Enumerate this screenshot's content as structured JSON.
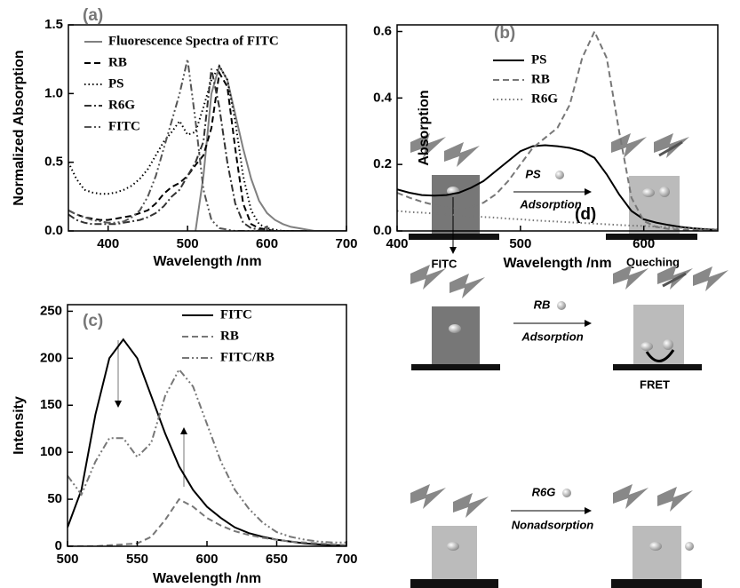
{
  "chart_data": [
    {
      "type": "line",
      "title": "(a)",
      "xlabel": "Wavelength /nm",
      "ylabel": "Normalized Absorption",
      "x": [
        350,
        360,
        370,
        380,
        390,
        400,
        410,
        420,
        430,
        440,
        450,
        460,
        470,
        480,
        490,
        500,
        510,
        520,
        530,
        540,
        550,
        560,
        570,
        580,
        590,
        600,
        610,
        620,
        630,
        640,
        650,
        660,
        670,
        680,
        690,
        700
      ],
      "series": [
        {
          "name": "Fluorescence Spectra of FITC",
          "color": "#808080",
          "dash": "solid",
          "values": [
            null,
            null,
            null,
            null,
            null,
            null,
            null,
            null,
            null,
            null,
            null,
            null,
            null,
            null,
            null,
            null,
            0.0,
            0.4,
            1.0,
            1.2,
            1.1,
            0.85,
            0.6,
            0.38,
            0.22,
            0.13,
            0.08,
            0.05,
            0.03,
            0.02,
            0.01,
            0.0,
            0.0,
            0.0,
            0.0,
            0.0
          ]
        },
        {
          "name": "RB",
          "color": "#000000",
          "dash": "dashed",
          "values": [
            0.15,
            0.12,
            0.1,
            0.09,
            0.08,
            0.08,
            0.09,
            0.1,
            0.11,
            0.13,
            0.15,
            0.2,
            0.27,
            0.32,
            0.35,
            0.4,
            0.48,
            0.55,
            0.75,
            1.15,
            1.05,
            0.6,
            0.2,
            0.05,
            0.02,
            0.01,
            0.0,
            0.0,
            0.0,
            0.0,
            0.0,
            null,
            null,
            null,
            null,
            null
          ]
        },
        {
          "name": "PS",
          "color": "#000000",
          "dash": "dotted",
          "values": [
            0.5,
            0.38,
            0.3,
            0.28,
            0.27,
            0.27,
            0.28,
            0.3,
            0.33,
            0.38,
            0.45,
            0.55,
            0.65,
            0.72,
            0.8,
            0.7,
            0.72,
            0.9,
            1.1,
            1.2,
            1.1,
            0.8,
            0.4,
            0.15,
            0.05,
            0.02,
            0.01,
            0.0,
            0.0,
            0.0,
            0.0,
            null,
            null,
            null,
            null,
            null
          ]
        },
        {
          "name": "R6G",
          "color": "#333333",
          "dash": "dashdot",
          "values": [
            0.12,
            0.08,
            0.06,
            0.05,
            0.05,
            0.05,
            0.05,
            0.06,
            0.07,
            0.08,
            0.1,
            0.13,
            0.18,
            0.25,
            0.3,
            0.4,
            0.5,
            0.65,
            1.18,
            0.9,
            0.5,
            0.2,
            0.06,
            0.02,
            0.01,
            0.0,
            0.0,
            0.0,
            0.0,
            0.0,
            0.0,
            null,
            null,
            null,
            null,
            null
          ]
        },
        {
          "name": "FITC",
          "color": "#555555",
          "dash": "dashdotdot",
          "values": [
            0.15,
            0.12,
            0.1,
            0.08,
            0.07,
            0.06,
            0.06,
            0.07,
            0.1,
            0.15,
            0.25,
            0.4,
            0.6,
            0.8,
            1.0,
            1.25,
            0.8,
            0.3,
            0.08,
            0.02,
            0.01,
            0.0,
            0.0,
            0.0,
            0.0,
            0.0,
            0.0,
            0.0,
            0.0,
            0.0,
            0.0,
            null,
            null,
            null,
            null,
            null
          ]
        }
      ],
      "xlim": [
        350,
        700
      ],
      "ylim": [
        0,
        1.5
      ],
      "xticks": [
        400,
        500,
        600,
        700
      ],
      "yticks": [
        {
          "value": 0,
          "label": "0.0"
        },
        0.5,
        {
          "value": 1,
          "label": "1.0"
        },
        1.5
      ],
      "grid": false,
      "legend": "upper left"
    },
    {
      "type": "line",
      "title": "(b)",
      "xlabel": "Wavelength /nm",
      "ylabel": "Absorption",
      "x": [
        400,
        410,
        420,
        430,
        440,
        450,
        460,
        470,
        480,
        490,
        500,
        510,
        520,
        530,
        540,
        550,
        560,
        570,
        580,
        590,
        600,
        610,
        620,
        630,
        640,
        650,
        660
      ],
      "series": [
        {
          "name": "PS",
          "color": "#000000",
          "dash": "solid",
          "values": [
            0.125,
            0.115,
            0.108,
            0.106,
            0.108,
            0.115,
            0.13,
            0.15,
            0.18,
            0.21,
            0.24,
            0.255,
            0.258,
            0.255,
            0.25,
            0.24,
            0.22,
            0.17,
            0.11,
            0.06,
            0.035,
            0.025,
            0.018,
            0.012,
            0.008,
            0.005,
            0.003
          ]
        },
        {
          "name": "RB",
          "color": "#777777",
          "dash": "dashed",
          "values": [
            0.115,
            0.1,
            0.088,
            0.078,
            0.07,
            0.068,
            0.072,
            0.085,
            0.11,
            0.15,
            0.2,
            0.25,
            0.28,
            0.31,
            0.38,
            0.52,
            0.6,
            0.52,
            0.3,
            0.1,
            0.03,
            0.012,
            0.006,
            0.004,
            0.003,
            0.002,
            0.002
          ]
        },
        {
          "name": "R6G",
          "color": "#777777",
          "dash": "dotted",
          "values": [
            0.06,
            0.057,
            0.055,
            0.052,
            0.05,
            0.047,
            0.045,
            0.042,
            0.04,
            0.037,
            0.035,
            0.032,
            0.03,
            0.028,
            0.026,
            0.024,
            0.022,
            0.02,
            0.018,
            0.016,
            0.015,
            0.013,
            0.011,
            0.009,
            0.008,
            0.006,
            0.005
          ]
        }
      ],
      "xlim": [
        400,
        660
      ],
      "ylim": [
        0,
        0.62
      ],
      "xticks": [
        400,
        500,
        600
      ],
      "yticks": [
        {
          "value": 0,
          "label": "0.0"
        },
        0.2,
        0.4,
        0.6
      ],
      "grid": false,
      "legend": "upper left"
    },
    {
      "type": "line",
      "title": "(c)",
      "xlabel": "Wavelength /nm",
      "ylabel": "Intensity",
      "x": [
        500,
        510,
        520,
        530,
        540,
        550,
        560,
        570,
        580,
        590,
        600,
        610,
        620,
        630,
        640,
        650,
        660,
        670,
        680,
        690,
        700
      ],
      "series": [
        {
          "name": "FITC",
          "color": "#000000",
          "dash": "solid",
          "values": [
            20,
            60,
            140,
            200,
            220,
            200,
            160,
            120,
            85,
            60,
            42,
            30,
            20,
            14,
            10,
            7,
            5,
            3,
            2,
            1,
            1
          ]
        },
        {
          "name": "RB",
          "color": "#777777",
          "dash": "dashed",
          "values": [
            0,
            0,
            0,
            1,
            2,
            3,
            10,
            28,
            50,
            42,
            30,
            22,
            16,
            12,
            9,
            7,
            5,
            4,
            3,
            2,
            1
          ]
        },
        {
          "name": "FITC/RB",
          "color": "#777777",
          "dash": "dashdotdot",
          "values": [
            75,
            55,
            90,
            115,
            115,
            95,
            110,
            160,
            188,
            170,
            130,
            90,
            60,
            40,
            25,
            15,
            10,
            7,
            5,
            4,
            4
          ]
        }
      ],
      "xlim": [
        500,
        700
      ],
      "ylim": [
        0,
        257
      ],
      "xticks": [
        500,
        550,
        600,
        650,
        700
      ],
      "yticks": [
        0,
        50,
        100,
        150,
        200,
        250
      ],
      "grid": false,
      "legend": "upper right"
    }
  ],
  "diagram": {
    "label": "(d)",
    "rows": [
      {
        "molecule": "PS",
        "process": "Adsorption",
        "left_caption": "FITC",
        "right_caption": "Queching"
      },
      {
        "molecule": "RB",
        "process": "Adsorption",
        "right_caption": "FRET"
      },
      {
        "molecule": "R6G",
        "process": "Nonadsorption"
      }
    ]
  }
}
